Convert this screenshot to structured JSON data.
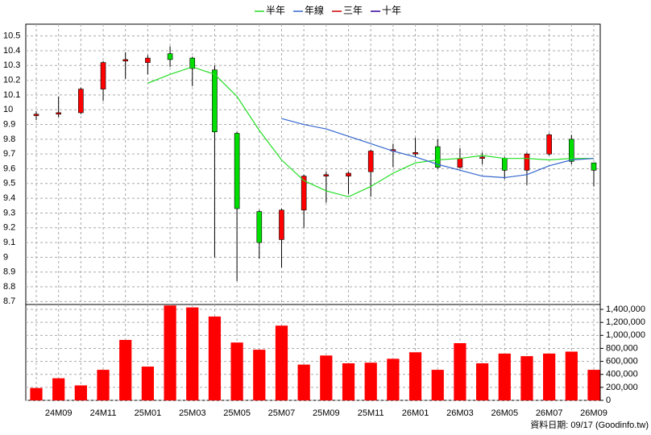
{
  "chart_data": {
    "type": "candlestick",
    "categories": [
      null,
      "24M09",
      null,
      "24M11",
      null,
      "25M01",
      null,
      "25M03",
      null,
      "25M05",
      null,
      "25M07",
      null,
      "25M09",
      null,
      "25M11",
      null,
      "26M01",
      null,
      "26M03",
      null,
      "26M05",
      null,
      "26M07",
      null,
      "26M09"
    ],
    "open": [
      9.96,
      9.97,
      9.98,
      10.14,
      10.33,
      10.32,
      10.38,
      10.35,
      10.27,
      9.84,
      9.31,
      9.12,
      9.32,
      9.55,
      9.55,
      9.58,
      9.72,
      9.7,
      9.75,
      9.61,
      9.67,
      9.67,
      9.59,
      9.7,
      9.8,
      9.64
    ],
    "high": [
      9.99,
      10.09,
      10.15,
      10.33,
      10.39,
      10.37,
      10.43,
      10.36,
      10.3,
      9.85,
      9.32,
      9.33,
      9.56,
      9.58,
      9.58,
      9.73,
      9.77,
      9.81,
      9.8,
      9.74,
      9.71,
      9.68,
      9.71,
      9.84,
      9.83,
      9.64
    ],
    "low": [
      9.93,
      9.95,
      9.97,
      10.06,
      10.21,
      10.24,
      10.29,
      10.16,
      9.0,
      8.84,
      8.99,
      8.93,
      9.2,
      9.37,
      9.43,
      9.41,
      9.61,
      9.68,
      9.6,
      9.6,
      9.63,
      9.53,
      9.49,
      9.69,
      9.63,
      9.48
    ],
    "close": [
      9.97,
      9.98,
      10.14,
      10.32,
      10.34,
      10.35,
      10.34,
      10.28,
      9.85,
      9.33,
      9.1,
      9.32,
      9.55,
      9.56,
      9.57,
      9.72,
      9.73,
      9.71,
      9.61,
      9.67,
      9.68,
      9.59,
      9.7,
      9.83,
      9.65,
      9.59
    ],
    "up_color": "#ff0000",
    "down_color": "#00e000",
    "series": [
      {
        "name": "半年",
        "color": "#22dd22",
        "values": [
          null,
          null,
          null,
          null,
          null,
          10.18,
          10.24,
          10.29,
          10.24,
          10.09,
          9.86,
          9.66,
          9.52,
          9.45,
          9.41,
          9.48,
          9.57,
          9.64,
          9.66,
          9.67,
          9.69,
          9.67,
          9.67,
          9.66,
          9.67,
          9.67
        ]
      },
      {
        "name": "年線",
        "color": "#3366cc",
        "values": [
          null,
          null,
          null,
          null,
          null,
          null,
          null,
          null,
          null,
          null,
          null,
          9.94,
          9.9,
          9.87,
          9.82,
          9.77,
          9.72,
          9.68,
          9.63,
          9.59,
          9.55,
          9.54,
          9.56,
          9.62,
          9.66,
          9.67
        ]
      },
      {
        "name": "三年",
        "color": "#cc0000",
        "values": [
          null,
          null,
          null,
          null,
          null,
          null,
          null,
          null,
          null,
          null,
          null,
          null,
          null,
          null,
          null,
          null,
          null,
          null,
          null,
          null,
          null,
          null,
          null,
          null,
          null,
          null
        ]
      },
      {
        "name": "十年",
        "color": "#330099",
        "values": [
          null,
          null,
          null,
          null,
          null,
          null,
          null,
          null,
          null,
          null,
          null,
          null,
          null,
          null,
          null,
          null,
          null,
          null,
          null,
          null,
          null,
          null,
          null,
          null,
          null,
          null
        ]
      }
    ],
    "ylim": [
      8.68,
      10.58
    ],
    "yticks": [
      8.7,
      8.8,
      8.9,
      9,
      9.1,
      9.2,
      9.3,
      9.4,
      9.5,
      9.6,
      9.7,
      9.8,
      9.9,
      10,
      10.1,
      10.2,
      10.3,
      10.4,
      10.5
    ],
    "volume": {
      "color": "#ff0000",
      "axis": "y2",
      "values": [
        190000,
        340000,
        230000,
        470000,
        930000,
        520000,
        1460000,
        1430000,
        1290000,
        890000,
        780000,
        1150000,
        550000,
        690000,
        570000,
        580000,
        640000,
        740000,
        470000,
        880000,
        570000,
        720000,
        680000,
        720000,
        750000,
        470000
      ]
    },
    "y2lim": [
      0,
      1475000
    ],
    "y2ticks": [
      0,
      {
        "value": 200000,
        "label": "200,000"
      },
      {
        "value": 400000,
        "label": "400,000"
      },
      {
        "value": 600000,
        "label": "600,000"
      },
      {
        "value": 800000,
        "label": "800,000"
      },
      {
        "value": 1000000,
        "label": "1,000,000"
      },
      {
        "value": 1200000,
        "label": "1,200,000"
      },
      {
        "value": 1400000,
        "label": "1,400,000"
      }
    ],
    "grid": true,
    "legend": "top",
    "source": "資料日期: 09/17 (Goodinfo.tw)"
  }
}
